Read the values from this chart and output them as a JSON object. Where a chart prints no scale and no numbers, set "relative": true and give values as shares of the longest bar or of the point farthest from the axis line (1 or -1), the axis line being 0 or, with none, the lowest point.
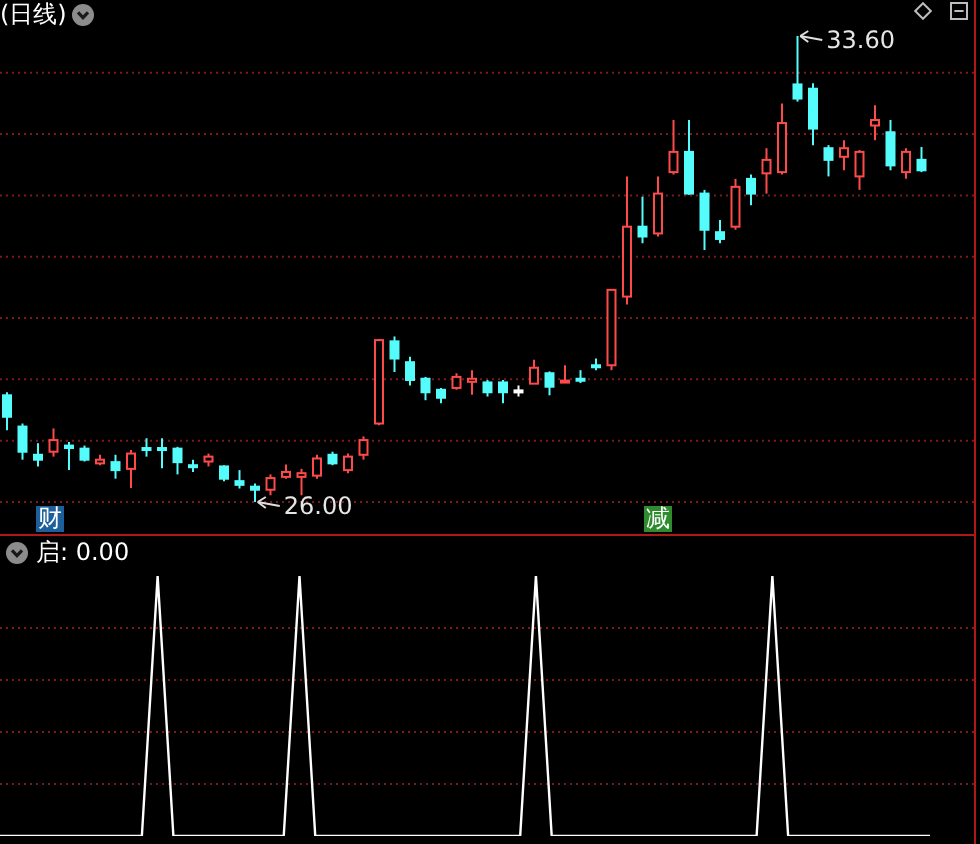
{
  "chart_data": [
    {
      "type": "candlestick",
      "title": "(日线)",
      "grid": "y",
      "categories": [
        null,
        null,
        null,
        null,
        null,
        null,
        null,
        null,
        null,
        null,
        null,
        null,
        null,
        null,
        null,
        null,
        null,
        null,
        null,
        null,
        null,
        null,
        null,
        null,
        null,
        null,
        null,
        null,
        null,
        null,
        null,
        null,
        null,
        null,
        null,
        null,
        null,
        null,
        null,
        null,
        null,
        null,
        null,
        null,
        null,
        null,
        null,
        null,
        null,
        null,
        null,
        null,
        null,
        null,
        null,
        null,
        null,
        null,
        null,
        null
      ],
      "ohlc": [
        [
          27.74,
          27.79,
          27.17,
          27.39
        ],
        [
          27.23,
          27.28,
          26.69,
          26.82
        ],
        [
          26.77,
          26.96,
          26.58,
          26.69
        ],
        [
          26.82,
          27.2,
          26.74,
          27.01
        ],
        [
          26.92,
          26.98,
          26.52,
          26.88
        ],
        [
          26.87,
          26.92,
          26.66,
          26.69
        ],
        [
          26.63,
          26.77,
          26.6,
          26.69
        ],
        [
          26.65,
          26.77,
          26.38,
          26.52
        ],
        [
          26.54,
          26.85,
          26.23,
          26.79
        ],
        [
          26.88,
          27.04,
          26.74,
          26.86
        ],
        [
          26.88,
          27.04,
          26.55,
          26.87
        ],
        [
          26.87,
          26.9,
          26.45,
          26.65
        ],
        [
          26.6,
          26.69,
          26.49,
          26.58
        ],
        [
          26.66,
          26.79,
          26.58,
          26.74
        ],
        [
          26.58,
          26.6,
          26.34,
          26.38
        ],
        [
          26.34,
          26.52,
          26.22,
          26.28
        ],
        [
          26.25,
          26.3,
          26.0,
          26.2
        ],
        [
          26.2,
          26.45,
          26.11,
          26.39
        ],
        [
          26.41,
          26.61,
          26.38,
          26.49
        ],
        [
          26.41,
          26.54,
          26.11,
          26.47
        ],
        [
          26.43,
          26.77,
          26.38,
          26.71
        ],
        [
          26.77,
          26.82,
          26.6,
          26.63
        ],
        [
          26.52,
          26.79,
          26.47,
          26.74
        ],
        [
          26.77,
          27.07,
          26.69,
          27.01
        ],
        [
          27.28,
          28.66,
          27.25,
          28.64
        ],
        [
          28.62,
          28.7,
          28.12,
          28.34
        ],
        [
          28.28,
          28.37,
          27.9,
          27.99
        ],
        [
          28.01,
          28.04,
          27.66,
          27.79
        ],
        [
          27.83,
          27.86,
          27.61,
          27.7
        ],
        [
          27.86,
          28.1,
          27.83,
          28.04
        ],
        [
          27.96,
          28.15,
          27.75,
          28.01
        ],
        [
          27.95,
          27.99,
          27.72,
          27.79
        ],
        [
          27.95,
          27.99,
          27.61,
          27.79
        ],
        [
          27.82,
          27.9,
          27.72,
          27.82
        ],
        [
          27.93,
          28.32,
          27.93,
          28.19
        ],
        [
          28.1,
          28.13,
          27.74,
          27.88
        ],
        [
          27.97,
          28.23,
          27.97,
          27.98
        ],
        [
          28.01,
          28.15,
          27.94,
          28.0
        ],
        [
          28.23,
          28.34,
          28.15,
          28.22
        ],
        [
          28.23,
          29.46,
          28.15,
          29.46
        ],
        [
          29.35,
          31.31,
          29.22,
          30.49
        ],
        [
          30.49,
          30.98,
          30.22,
          30.33
        ],
        [
          30.38,
          31.31,
          30.33,
          31.03
        ],
        [
          31.38,
          32.23,
          31.34,
          31.71
        ],
        [
          31.71,
          32.23,
          31.01,
          31.03
        ],
        [
          31.03,
          31.09,
          30.11,
          30.44
        ],
        [
          30.4,
          30.6,
          30.22,
          30.29
        ],
        [
          30.49,
          31.27,
          30.44,
          31.14
        ],
        [
          31.27,
          31.34,
          30.84,
          31.03
        ],
        [
          31.36,
          31.77,
          31.03,
          31.58
        ],
        [
          31.38,
          32.5,
          31.34,
          32.18
        ],
        [
          32.81,
          33.6,
          32.53,
          32.58
        ],
        [
          32.74,
          32.83,
          31.82,
          32.09
        ],
        [
          31.77,
          31.82,
          31.31,
          31.58
        ],
        [
          31.63,
          31.9,
          31.41,
          31.77
        ],
        [
          31.31,
          31.74,
          31.09,
          31.71
        ],
        [
          32.14,
          32.47,
          31.9,
          32.23
        ],
        [
          32.03,
          32.23,
          31.41,
          31.49
        ],
        [
          31.38,
          31.77,
          31.27,
          31.71
        ],
        [
          31.58,
          31.79,
          31.38,
          31.41
        ]
      ],
      "colors": [
        "#54fcfc",
        "#54fcfc",
        "#54fcfc",
        "#ff4a4a",
        "#54fcfc",
        "#54fcfc",
        "#ff4a4a",
        "#54fcfc",
        "#ff4a4a",
        "#54fcfc",
        "#54fcfc",
        "#54fcfc",
        "#54fcfc",
        "#ff4a4a",
        "#54fcfc",
        "#54fcfc",
        "#54fcfc",
        "#ff4a4a",
        "#ff4a4a",
        "#ff4a4a",
        "#ff4a4a",
        "#54fcfc",
        "#ff4a4a",
        "#ff4a4a",
        "#ff4a4a",
        "#54fcfc",
        "#54fcfc",
        "#54fcfc",
        "#54fcfc",
        "#ff4a4a",
        "#ff4a4a",
        "#54fcfc",
        "#54fcfc",
        "#ffffff",
        "#ff4a4a",
        "#54fcfc",
        "#ff4a4a",
        "#54fcfc",
        "#54fcfc",
        "#ff4a4a",
        "#ff4a4a",
        "#54fcfc",
        "#ff4a4a",
        "#ff4a4a",
        "#54fcfc",
        "#54fcfc",
        "#54fcfc",
        "#ff4a4a",
        "#54fcfc",
        "#ff4a4a",
        "#ff4a4a",
        "#54fcfc",
        "#54fcfc",
        "#54fcfc",
        "#ff4a4a",
        "#ff4a4a",
        "#ff4a4a",
        "#54fcfc",
        "#ff4a4a",
        "#54fcfc"
      ],
      "yticks": [
        {
          "value": 26,
          "label": null
        },
        {
          "value": 27,
          "label": null
        },
        {
          "value": 28,
          "label": null
        },
        {
          "value": 29,
          "label": null
        },
        {
          "value": 30,
          "label": null
        },
        {
          "value": 31,
          "label": null
        },
        {
          "value": 32,
          "label": null
        },
        {
          "value": 33,
          "label": null
        }
      ],
      "annotations": [
        "33.60",
        "26.00",
        "财",
        "减"
      ]
    },
    {
      "type": "line",
      "relative": true,
      "legend": "top left",
      "categories": [
        null,
        null,
        null,
        null,
        null,
        null,
        null,
        null,
        null,
        null,
        null,
        null,
        null,
        null,
        null,
        null,
        null,
        null,
        null,
        null,
        null,
        null,
        null,
        null,
        null,
        null,
        null,
        null,
        null,
        null,
        null,
        null,
        null,
        null,
        null,
        null,
        null,
        null,
        null,
        null,
        null,
        null,
        null,
        null,
        null,
        null,
        null,
        null,
        null,
        null,
        null,
        null,
        null,
        null,
        null,
        null,
        null,
        null,
        null,
        null
      ],
      "series": [
        {
          "name": "启: 0.00",
          "color": "#ffffff",
          "values": [
            0,
            0,
            0,
            0,
            0,
            0,
            0,
            0,
            0,
            0,
            1,
            0,
            0,
            0,
            0,
            0,
            0,
            0,
            0,
            1,
            0,
            0,
            0,
            0,
            0,
            0,
            0,
            0,
            0,
            0,
            0,
            0,
            0,
            0,
            1,
            0,
            0,
            0,
            0,
            0,
            0,
            0,
            0,
            0,
            0,
            0,
            0,
            0,
            0,
            1,
            0,
            0,
            0,
            0,
            0,
            0,
            0,
            0,
            0,
            0
          ]
        }
      ],
      "ref_lines": [
        {
          "axis": "y",
          "value": 0.2,
          "color": "#7a1a1a",
          "line_style": "dotted"
        },
        {
          "axis": "y",
          "value": 0.4,
          "color": "#7a1a1a",
          "line_style": "dotted"
        },
        {
          "axis": "y",
          "value": 0.6,
          "color": "#7a1a1a",
          "line_style": "dotted"
        },
        {
          "axis": "y",
          "value": 0.8,
          "color": "#7a1a1a",
          "line_style": "dotted"
        }
      ]
    }
  ]
}
